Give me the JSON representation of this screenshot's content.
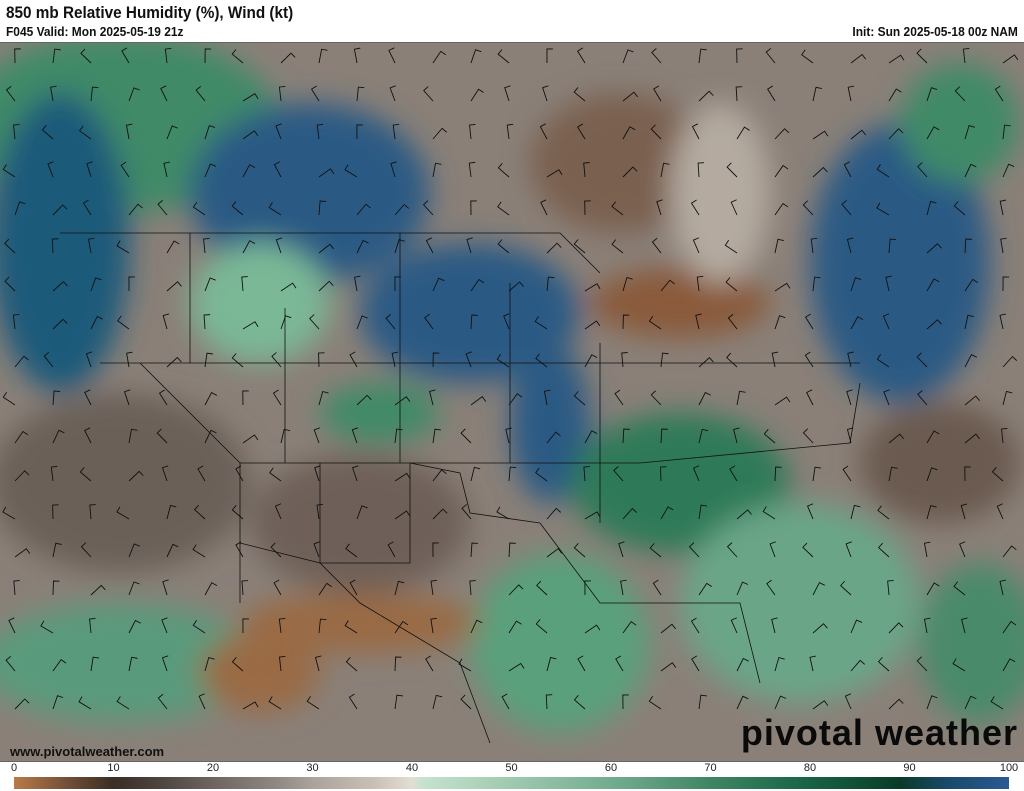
{
  "header": {
    "title": "850 mb Relative Humidity (%), Wind (kt)",
    "valid": "F045 Valid: Mon 2025-05-19 21z",
    "init": "Init: Sun 2025-05-18 00z NAM"
  },
  "footer": {
    "website": "www.pivotalweather.com",
    "logo": "pivotal weather"
  },
  "colorbar": {
    "labels": [
      "0",
      "10",
      "20",
      "30",
      "40",
      "50",
      "60",
      "70",
      "80",
      "90",
      "100"
    ],
    "colors": {
      "0": "#b97a4a",
      "10": "#3a2e26",
      "20": "#6e6560",
      "30": "#aaa29b",
      "40": "#e4ddd2",
      "50": "#a8cfb6",
      "60": "#6aa588",
      "70": "#3f8564",
      "80": "#1d6a4a",
      "90": "#0a3a28",
      "100": "#2a5a94"
    }
  }
}
